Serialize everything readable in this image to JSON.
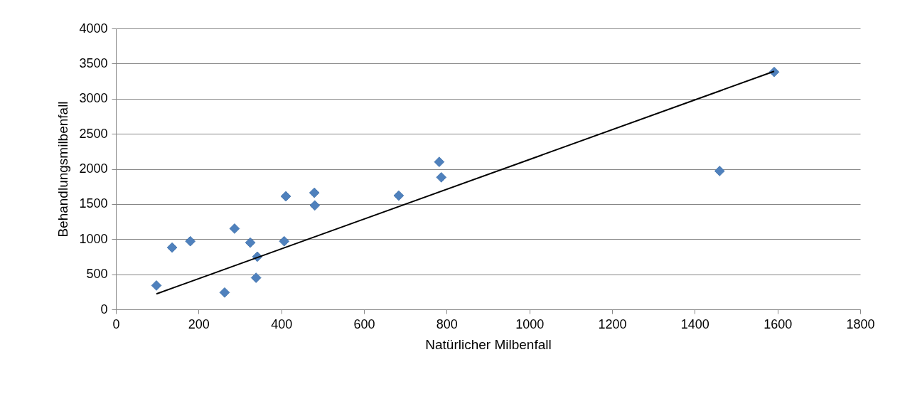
{
  "chart_data": {
    "type": "scatter",
    "xlabel": "Natürlicher Milbenfall",
    "ylabel": "Behandlungsmilbenfall",
    "xlim": [
      0,
      1800
    ],
    "xticks": [
      0,
      200,
      400,
      600,
      800,
      1000,
      1200,
      1400,
      1600,
      1800
    ],
    "ylim": [
      0,
      4000
    ],
    "yticks": [
      0,
      500,
      1000,
      1500,
      2000,
      2500,
      3000,
      3500,
      4000
    ],
    "grid": "y",
    "series": [
      {
        "color": "#4f81bd",
        "marker": "diamond",
        "x": [
          98,
          136,
          180,
          263,
          287,
          325,
          342,
          339,
          407,
          411,
          480,
          481,
          684,
          782,
          787,
          1460,
          1592
        ],
        "values": [
          340,
          880,
          970,
          240,
          1150,
          950,
          750,
          450,
          970,
          1610,
          1660,
          1480,
          1620,
          2100,
          1880,
          1970,
          3380
        ]
      },
      {
        "type": "line",
        "color": "#000000",
        "x": [
          98,
          1592
        ],
        "values": [
          220,
          3390
        ]
      }
    ]
  }
}
